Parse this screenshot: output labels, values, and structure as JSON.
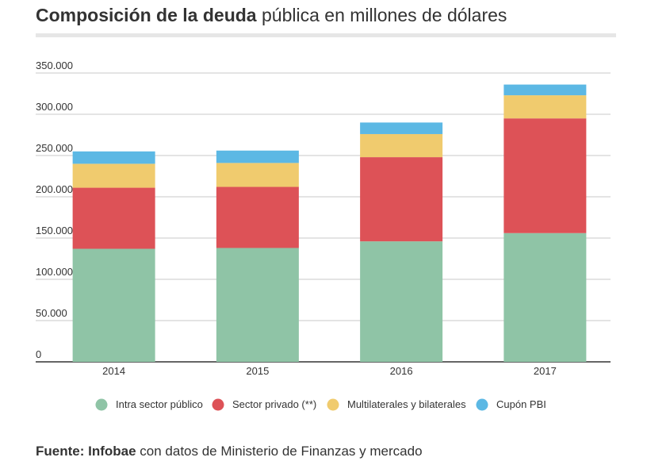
{
  "header": {
    "title_bold": "Composición de la deuda",
    "title_rest": " pública en millones de dólares"
  },
  "chart_data": {
    "type": "bar",
    "stacked": true,
    "categories": [
      "2014",
      "2015",
      "2016",
      "2017"
    ],
    "series": [
      {
        "name": "Intra sector público",
        "color": "#8fc4a6",
        "values": [
          137000,
          138000,
          146000,
          156000
        ]
      },
      {
        "name": "Sector privado (**)",
        "color": "#dd5257",
        "values": [
          74000,
          74000,
          102000,
          139000
        ]
      },
      {
        "name": "Multilaterales y bilaterales",
        "color": "#f0cb6e",
        "values": [
          29000,
          29000,
          28000,
          28000
        ]
      },
      {
        "name": "Cupón PBI",
        "color": "#5cb8e4",
        "values": [
          15000,
          15000,
          14000,
          13000
        ]
      }
    ],
    "yticks": [
      "0",
      "50.000",
      "100.000",
      "150.000",
      "200.000",
      "250.000",
      "300.000",
      "350.000"
    ],
    "ylim": [
      0,
      350000
    ],
    "grid": true,
    "legend_position": "bottom"
  },
  "footer": {
    "source_bold": "Fuente: Infobae",
    "source_rest": " con datos de Ministerio de Finanzas y mercado"
  }
}
